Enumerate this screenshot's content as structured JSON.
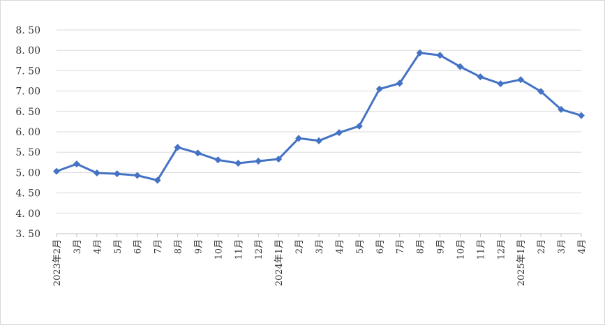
{
  "chart_data": {
    "type": "line",
    "categories": [
      "2023年2月",
      "3月",
      "4月",
      "5月",
      "6月",
      "7月",
      "8月",
      "9月",
      "10月",
      "11月",
      "12月",
      "2024年1月",
      "2月",
      "3月",
      "4月",
      "5月",
      "6月",
      "7月",
      "8月",
      "9月",
      "10月",
      "11月",
      "12月",
      "2025年1月",
      "2月",
      "3月",
      "4月"
    ],
    "series": [
      {
        "values": [
          5.03,
          5.21,
          4.99,
          4.97,
          4.93,
          4.81,
          5.62,
          5.48,
          5.31,
          5.23,
          5.28,
          5.33,
          5.84,
          5.78,
          5.98,
          6.14,
          7.05,
          7.19,
          7.94,
          7.88,
          7.6,
          7.35,
          7.18,
          7.28,
          6.99,
          6.55,
          6.4
        ]
      }
    ],
    "yticks": [
      "3. 50",
      "4. 00",
      "4. 50",
      "5. 00",
      "5. 50",
      "6. 00",
      "6. 50",
      "7. 00",
      "7. 50",
      "8. 00",
      "8. 50"
    ],
    "ylim": [
      3.5,
      8.5
    ],
    "grid": true,
    "line_color": "#4472C4",
    "grid_color": "#d9d9d9"
  }
}
